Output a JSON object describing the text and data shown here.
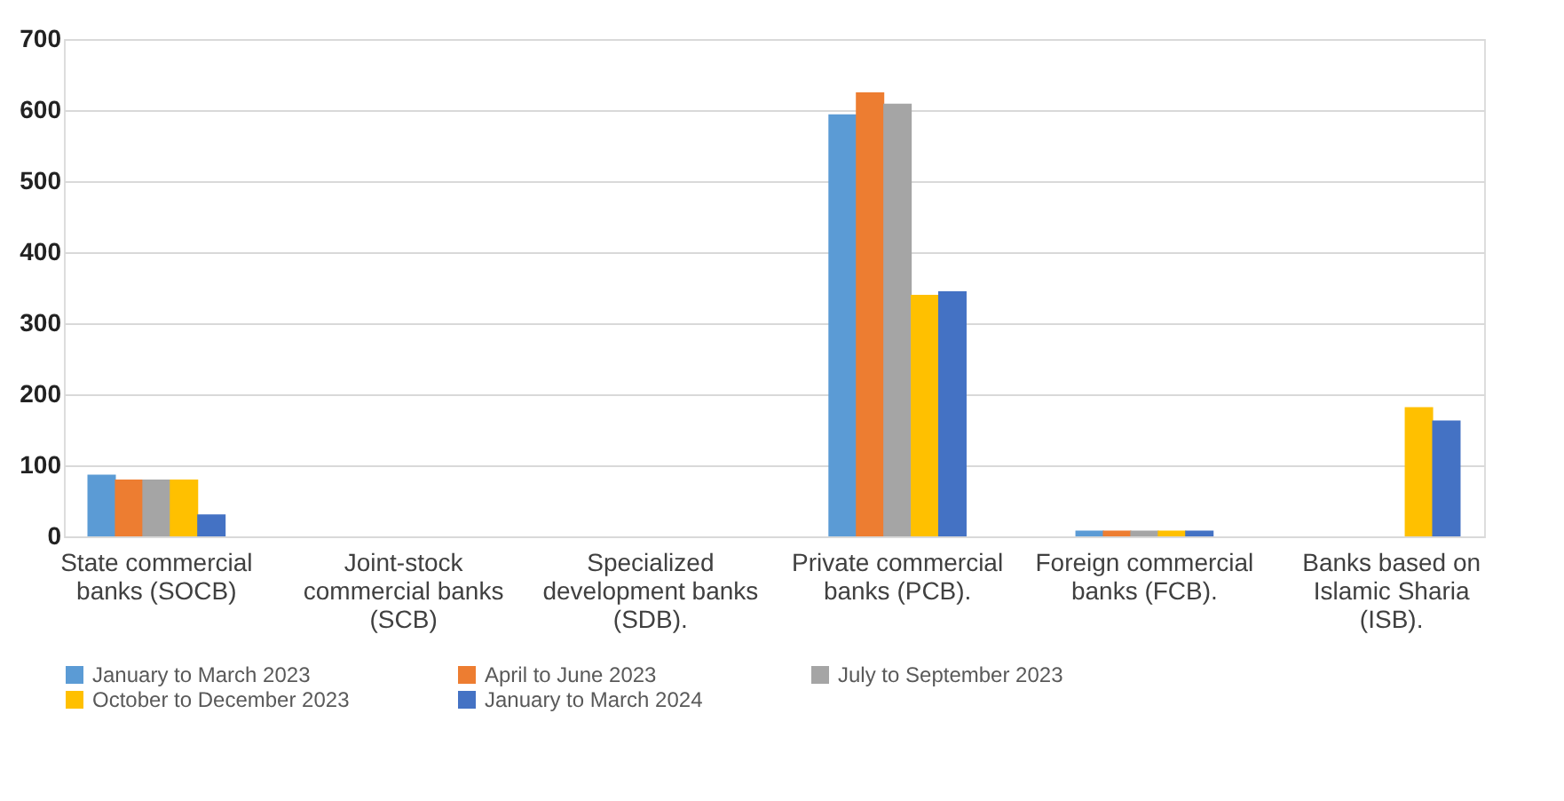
{
  "chart_data": {
    "type": "bar",
    "categories": [
      "State commercial banks (SOCB)",
      "Joint-stock commercial banks (SCB)",
      "Specialized development banks (SDB).",
      "Private commercial banks (PCB).",
      "Foreign commercial banks (FCB).",
      "Banks based on Islamic Sharia (ISB)."
    ],
    "series": [
      {
        "name": "January to March 2023",
        "color": "#5b9bd5",
        "values": [
          87,
          null,
          null,
          594,
          8,
          null
        ]
      },
      {
        "name": "April to June 2023",
        "color": "#ed7d31",
        "values": [
          80,
          null,
          null,
          625,
          8,
          null
        ]
      },
      {
        "name": "July to September 2023",
        "color": "#a5a5a5",
        "values": [
          80,
          null,
          null,
          609,
          8,
          null
        ]
      },
      {
        "name": "October to December 2023",
        "color": "#ffc000",
        "values": [
          80,
          null,
          null,
          340,
          8,
          182
        ]
      },
      {
        "name": "January to March 2024",
        "color": "#4472c4",
        "values": [
          31,
          null,
          null,
          345,
          8,
          163
        ]
      }
    ],
    "ylim": [
      0,
      700
    ],
    "yticks": [
      0,
      100,
      200,
      300,
      400,
      500,
      600,
      700
    ],
    "grid": "y",
    "legend": "bottom"
  }
}
